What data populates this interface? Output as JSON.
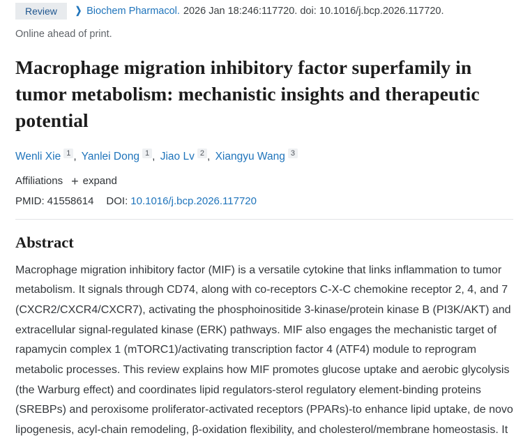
{
  "header": {
    "badge": "Review",
    "journal": "Biochem Pharmacol.",
    "citation": "2026 Jan 18:246:117720. doi: 10.1016/j.bcp.2026.117720.",
    "online_ahead": "Online ahead of print."
  },
  "icons": {
    "chevron_right": "❯",
    "plus": "+"
  },
  "title": "Macrophage migration inhibitory factor superfamily in tumor metabolism: mechanistic insights and therapeutic potential",
  "authors_separator": ",",
  "authors": [
    {
      "name": "Wenli Xie",
      "sup": "1"
    },
    {
      "name": "Yanlei Dong",
      "sup": "1"
    },
    {
      "name": "Jiao Lv",
      "sup": "2"
    },
    {
      "name": "Xiangyu Wang",
      "sup": "3"
    }
  ],
  "affiliations": {
    "label": "Affiliations",
    "expand_label": "expand"
  },
  "identifiers": {
    "pmid_label": "PMID:",
    "pmid": "41558614",
    "doi_label": "DOI:",
    "doi": "10.1016/j.bcp.2026.117720"
  },
  "abstract": {
    "heading": "Abstract",
    "text": "Macrophage migration inhibitory factor (MIF) is a versatile cytokine that links inflammation to tumor metabolism. It signals through CD74, along with co-receptors C-X-C chemokine receptor 2, 4, and 7 (CXCR2/CXCR4/CXCR7), activating the phosphoinositide 3-kinase/protein kinase B (PI3K/AKT) and extracellular signal-regulated kinase (ERK) pathways. MIF also engages the mechanistic target of rapamycin complex 1 (mTORC1)/activating transcription factor 4 (ATF4) module to reprogram metabolic processes. This review explains how MIF promotes glucose uptake and aerobic glycolysis (the Warburg effect) and coordinates lipid regulators-sterol regulatory element-binding proteins (SREBPs) and peroxisome proliferator-activated receptors (PPARs)-to enhance lipid uptake, de novo lipogenesis, acyl-chain remodeling, β-oxidation flexibility, and cholesterol/membrane homeostasis. It"
  },
  "colors": {
    "link_blue": "#1f74bb",
    "badge_background": "#e8ebee",
    "badge_text": "#1f568f",
    "text_dark": "#1c1c1c",
    "text_muted": "#5f6368",
    "divider": "#e1e3e6"
  }
}
